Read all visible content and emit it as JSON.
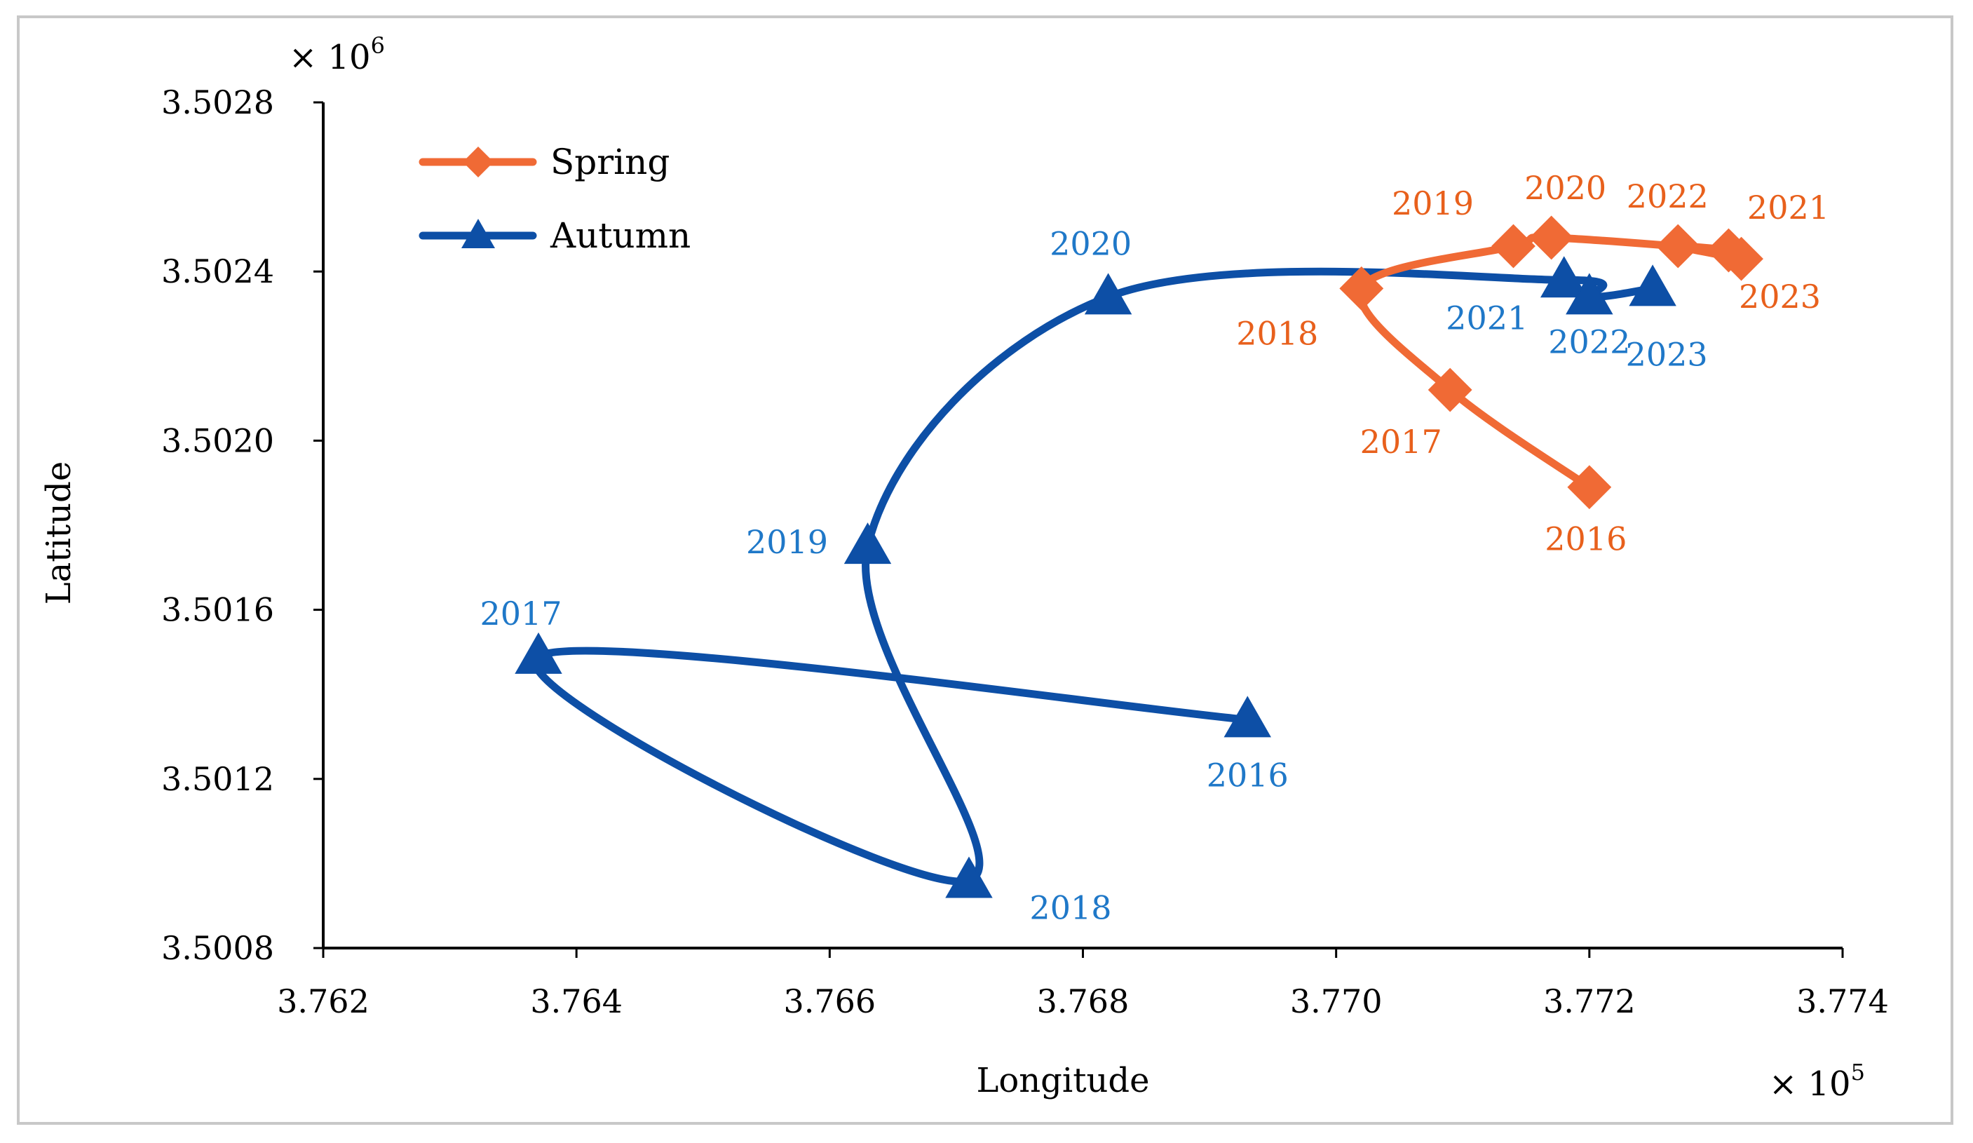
{
  "chart_data": {
    "type": "line",
    "title": "",
    "xlabel": "Longitude",
    "ylabel": "Latitude",
    "x_multiplier": "× 10",
    "x_multiplier_exp": "5",
    "y_multiplier": "× 10",
    "y_multiplier_exp": "6",
    "xlim": [
      3.762,
      3.774
    ],
    "ylim": [
      3.5008,
      3.5028
    ],
    "x_ticks": [
      "3.762",
      "3.764",
      "3.766",
      "3.768",
      "3.770",
      "3.772",
      "3.774"
    ],
    "y_ticks": [
      "3.5008",
      "3.5012",
      "3.5016",
      "3.5020",
      "3.5024",
      "3.5028"
    ],
    "grid": false,
    "legend_position": "top-left",
    "series": [
      {
        "name": "Spring",
        "color": "#f06a35",
        "marker": "diamond",
        "label_color": "#e8601c",
        "points": [
          {
            "year": "2016",
            "x": 3.772,
            "y": 3.50189
          },
          {
            "year": "2017",
            "x": 3.7709,
            "y": 3.50212
          },
          {
            "year": "2018",
            "x": 3.7702,
            "y": 3.50236
          },
          {
            "year": "2019",
            "x": 3.7714,
            "y": 3.50246
          },
          {
            "year": "2020",
            "x": 3.7717,
            "y": 3.50248
          },
          {
            "year": "2021",
            "x": 3.7731,
            "y": 3.50245
          },
          {
            "year": "2022",
            "x": 3.7727,
            "y": 3.50246
          },
          {
            "year": "2023",
            "x": 3.7732,
            "y": 3.50243
          }
        ]
      },
      {
        "name": "Autumn",
        "color": "#0d4fa6",
        "marker": "triangle",
        "label_color": "#1f78c8",
        "points": [
          {
            "year": "2016",
            "x": 3.7693,
            "y": 3.50134
          },
          {
            "year": "2017",
            "x": 3.7637,
            "y": 3.50149
          },
          {
            "year": "2018",
            "x": 3.7671,
            "y": 3.50096
          },
          {
            "year": "2019",
            "x": 3.7663,
            "y": 3.50175
          },
          {
            "year": "2020",
            "x": 3.7682,
            "y": 3.50234
          },
          {
            "year": "2021",
            "x": 3.7718,
            "y": 3.50238
          },
          {
            "year": "2022",
            "x": 3.772,
            "y": 3.50234
          },
          {
            "year": "2023",
            "x": 3.7725,
            "y": 3.50236
          }
        ]
      }
    ]
  }
}
